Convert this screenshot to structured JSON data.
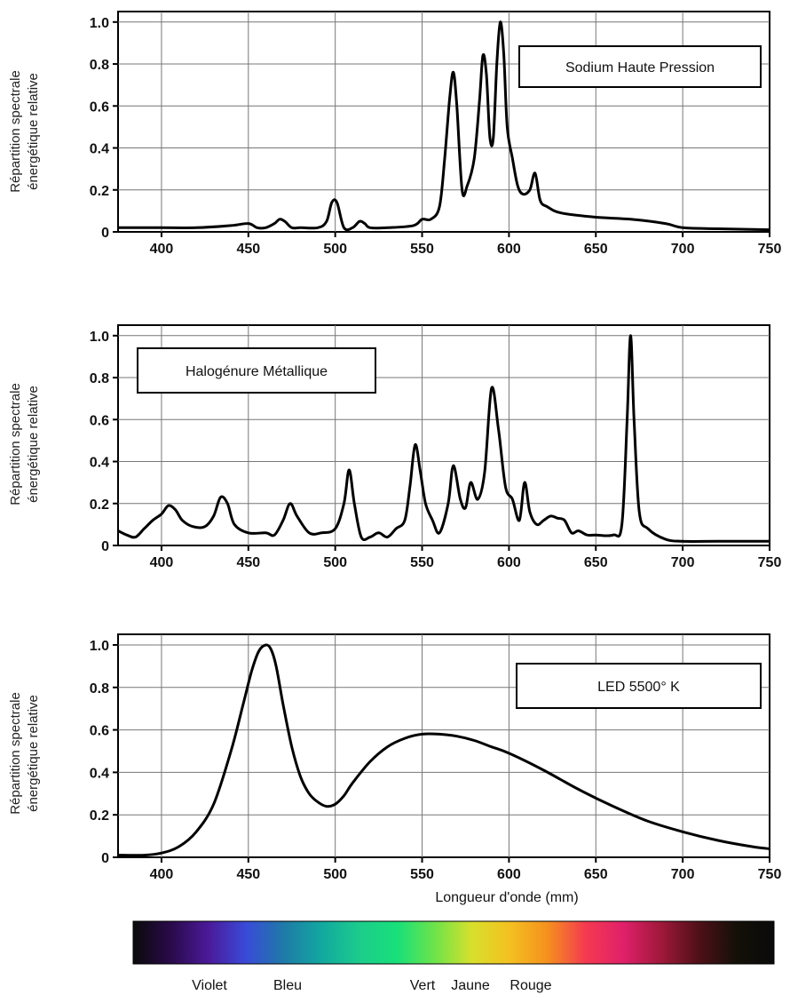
{
  "chart_data": [
    {
      "type": "line",
      "ylabel": [
        "Répartition spectrale",
        "énergétique relative"
      ],
      "legend": "Sodium Haute Pression",
      "legend_position": "top-right",
      "xlim": [
        375,
        750
      ],
      "ylim": [
        0,
        1.05
      ],
      "xticks": [
        400,
        450,
        500,
        550,
        600,
        650,
        700,
        750
      ],
      "yticks": [
        0,
        0.2,
        0.4,
        0.6,
        0.8,
        1.0
      ],
      "ytick_labels": [
        "0",
        "0.2",
        "0.4",
        "0.6",
        "0.8",
        "1.0"
      ],
      "grid": true,
      "series": [
        {
          "x": [
            375,
            400,
            420,
            440,
            450,
            455,
            460,
            465,
            468,
            471,
            475,
            480,
            490,
            495,
            498,
            501,
            505,
            510,
            514,
            517,
            520,
            530,
            545,
            550,
            555,
            560,
            563,
            566,
            568,
            570,
            573,
            576,
            580,
            583,
            585,
            587,
            589,
            591,
            593,
            595,
            597,
            599,
            602,
            605,
            608,
            612,
            615,
            618,
            622,
            630,
            650,
            670,
            690,
            700,
            720,
            750
          ],
          "y": [
            0.02,
            0.02,
            0.02,
            0.03,
            0.04,
            0.02,
            0.02,
            0.04,
            0.06,
            0.05,
            0.02,
            0.02,
            0.02,
            0.05,
            0.14,
            0.14,
            0.02,
            0.02,
            0.05,
            0.04,
            0.02,
            0.02,
            0.03,
            0.06,
            0.06,
            0.12,
            0.35,
            0.65,
            0.76,
            0.6,
            0.2,
            0.22,
            0.35,
            0.62,
            0.84,
            0.75,
            0.45,
            0.45,
            0.8,
            1.0,
            0.85,
            0.5,
            0.35,
            0.22,
            0.18,
            0.2,
            0.28,
            0.15,
            0.12,
            0.09,
            0.07,
            0.06,
            0.04,
            0.02,
            0.015,
            0.01
          ]
        }
      ]
    },
    {
      "type": "line",
      "ylabel": [
        "Répartition spectrale",
        "énergétique relative"
      ],
      "legend": "Halogénure Métallique",
      "legend_position": "top-left",
      "xlim": [
        375,
        750
      ],
      "ylim": [
        0,
        1.05
      ],
      "xticks": [
        400,
        450,
        500,
        550,
        600,
        650,
        700,
        750
      ],
      "yticks": [
        0,
        0.2,
        0.4,
        0.6,
        0.8,
        1.0
      ],
      "ytick_labels": [
        "0",
        "0.2",
        "0.4",
        "0.6",
        "0.8",
        "1.0"
      ],
      "grid": true,
      "series": [
        {
          "x": [
            375,
            380,
            385,
            390,
            395,
            400,
            404,
            408,
            412,
            418,
            425,
            430,
            434,
            438,
            442,
            450,
            460,
            465,
            470,
            474,
            478,
            485,
            492,
            500,
            505,
            508,
            511,
            515,
            520,
            525,
            530,
            535,
            540,
            543,
            546,
            549,
            552,
            556,
            560,
            565,
            568,
            572,
            575,
            578,
            582,
            586,
            590,
            594,
            598,
            602,
            606,
            609,
            612,
            616,
            620,
            624,
            628,
            632,
            636,
            640,
            645,
            650,
            660,
            665,
            668,
            670,
            672,
            675,
            680,
            690,
            700,
            720,
            750
          ],
          "y": [
            0.07,
            0.05,
            0.04,
            0.08,
            0.12,
            0.15,
            0.19,
            0.17,
            0.12,
            0.09,
            0.09,
            0.14,
            0.23,
            0.2,
            0.1,
            0.06,
            0.06,
            0.05,
            0.12,
            0.2,
            0.14,
            0.06,
            0.06,
            0.08,
            0.2,
            0.36,
            0.2,
            0.04,
            0.04,
            0.06,
            0.04,
            0.08,
            0.12,
            0.28,
            0.48,
            0.35,
            0.2,
            0.12,
            0.06,
            0.2,
            0.38,
            0.22,
            0.18,
            0.3,
            0.22,
            0.35,
            0.75,
            0.55,
            0.28,
            0.22,
            0.12,
            0.3,
            0.16,
            0.1,
            0.12,
            0.14,
            0.13,
            0.12,
            0.06,
            0.07,
            0.05,
            0.05,
            0.05,
            0.1,
            0.6,
            1.0,
            0.6,
            0.16,
            0.08,
            0.03,
            0.02,
            0.02,
            0.02
          ]
        }
      ]
    },
    {
      "type": "line",
      "ylabel": [
        "Répartition spectrale",
        "énergétique relative"
      ],
      "xlabel": "Longueur d'onde (mm)",
      "legend": "LED 5500° K",
      "legend_position": "top-right",
      "xlim": [
        375,
        750
      ],
      "ylim": [
        0,
        1.05
      ],
      "xticks": [
        400,
        450,
        500,
        550,
        600,
        650,
        700,
        750
      ],
      "yticks": [
        0,
        0.2,
        0.4,
        0.6,
        0.8,
        1.0
      ],
      "ytick_labels": [
        "0",
        "0.2",
        "0.4",
        "0.6",
        "0.8",
        "1.0"
      ],
      "grid": true,
      "series": [
        {
          "x": [
            375,
            390,
            400,
            410,
            420,
            430,
            440,
            447,
            452,
            456,
            460,
            463,
            466,
            470,
            475,
            480,
            485,
            490,
            495,
            500,
            505,
            510,
            520,
            530,
            540,
            550,
            560,
            570,
            580,
            590,
            600,
            620,
            640,
            660,
            680,
            700,
            720,
            740,
            750
          ],
          "y": [
            0.01,
            0.01,
            0.02,
            0.05,
            0.12,
            0.25,
            0.5,
            0.72,
            0.88,
            0.97,
            1.0,
            0.98,
            0.9,
            0.72,
            0.52,
            0.38,
            0.3,
            0.26,
            0.24,
            0.25,
            0.29,
            0.35,
            0.45,
            0.52,
            0.56,
            0.58,
            0.58,
            0.57,
            0.55,
            0.52,
            0.49,
            0.41,
            0.32,
            0.24,
            0.17,
            0.12,
            0.08,
            0.05,
            0.04
          ]
        }
      ]
    }
  ],
  "spectrum": {
    "stops": [
      "#0a0a0a",
      "#2a0a4a",
      "#4b1a9a",
      "#3a4ad8",
      "#1f7aa8",
      "#12a8a0",
      "#1ccc8c",
      "#18e07a",
      "#6ee34a",
      "#d8e02c",
      "#f4c020",
      "#f5901e",
      "#f43a50",
      "#e0206a",
      "#a0183a",
      "#501018",
      "#141008",
      "#0a0a0a"
    ],
    "labels": [
      "Violet",
      "Bleu",
      "Vert",
      "Jaune",
      "Rouge"
    ]
  }
}
